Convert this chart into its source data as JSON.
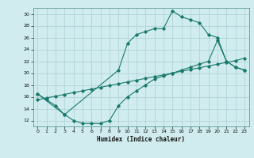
{
  "xlabel": "Humidex (Indice chaleur)",
  "bg_color": "#d0ecee",
  "grid_color": "#b0d4d8",
  "line_color": "#1a7a6e",
  "xlim": [
    -0.5,
    23.5
  ],
  "ylim": [
    11,
    31
  ],
  "yticks": [
    12,
    14,
    16,
    18,
    20,
    22,
    24,
    26,
    28,
    30
  ],
  "xticks": [
    0,
    1,
    2,
    3,
    4,
    5,
    6,
    7,
    8,
    9,
    10,
    11,
    12,
    13,
    14,
    15,
    16,
    17,
    18,
    19,
    20,
    21,
    22,
    23
  ],
  "line1_x": [
    0,
    1,
    2,
    3,
    9,
    10,
    11,
    12,
    13,
    14,
    15,
    16,
    17,
    18,
    19,
    20,
    21,
    22,
    23
  ],
  "line1_y": [
    16.5,
    15.5,
    14.5,
    13.0,
    20.5,
    25.0,
    26.5,
    27.0,
    27.5,
    27.5,
    30.5,
    29.5,
    29.0,
    28.5,
    26.5,
    26.0,
    22.0,
    21.0,
    20.5
  ],
  "line2_x": [
    0,
    1,
    2,
    3,
    4,
    5,
    6,
    7,
    8,
    9,
    10,
    11,
    12,
    13,
    14,
    15,
    16,
    17,
    18,
    19,
    20,
    21,
    22,
    23
  ],
  "line2_y": [
    15.5,
    15.8,
    16.1,
    16.4,
    16.7,
    17.0,
    17.3,
    17.6,
    17.9,
    18.2,
    18.5,
    18.8,
    19.1,
    19.4,
    19.7,
    20.0,
    20.3,
    20.6,
    20.9,
    21.2,
    21.5,
    21.8,
    22.1,
    22.5
  ],
  "line3_x": [
    0,
    3,
    4,
    5,
    6,
    7,
    8,
    9,
    10,
    11,
    12,
    13,
    14,
    15,
    16,
    17,
    18,
    19,
    20,
    21,
    22,
    23
  ],
  "line3_y": [
    16.5,
    13.0,
    12.0,
    11.5,
    11.5,
    11.5,
    12.0,
    14.5,
    16.0,
    17.0,
    18.0,
    19.0,
    19.5,
    20.0,
    20.5,
    21.0,
    21.5,
    22.0,
    25.5,
    22.0,
    21.0,
    20.5
  ]
}
